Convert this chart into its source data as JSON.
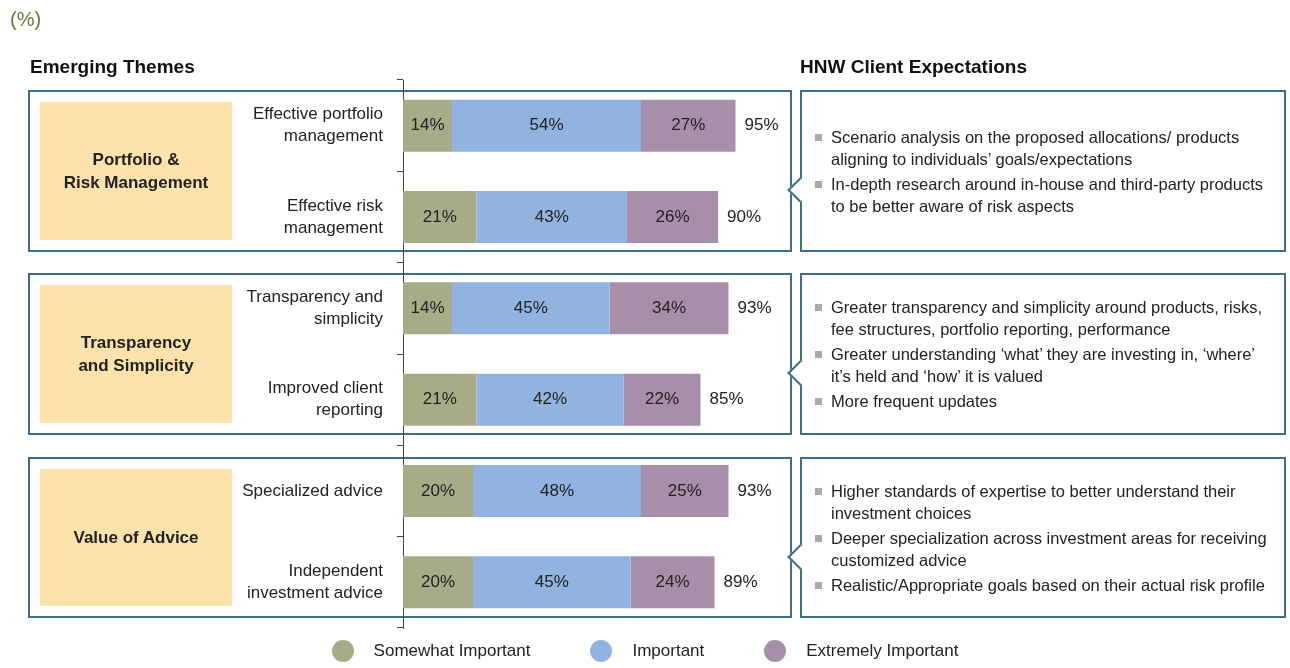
{
  "chart_data": {
    "type": "bar",
    "orientation": "horizontal",
    "stacked": true,
    "title": "(%)",
    "categories": [
      "Effective portfolio management",
      "Effective risk management",
      "Transparency and simplicity",
      "Improved client reporting",
      "Specialized advice",
      "Independent investment advice"
    ],
    "series": [
      {
        "name": "Somewhat Important",
        "color": "#a8ab87",
        "values": [
          14,
          21,
          14,
          21,
          20,
          20
        ],
        "value_labels": [
          "14%",
          "21%",
          "14%",
          "21%",
          "20%",
          "20%"
        ]
      },
      {
        "name": "Important",
        "color": "#90b4df",
        "values": [
          54,
          43,
          45,
          42,
          48,
          45
        ],
        "value_labels": [
          "54%",
          "43%",
          "45%",
          "42%",
          "48%",
          "45%"
        ]
      },
      {
        "name": "Extremely Important",
        "color": "#a88fa9",
        "values": [
          27,
          26,
          34,
          22,
          25,
          24
        ],
        "value_labels": [
          "27%",
          "26%",
          "34%",
          "22%",
          "25%",
          "24%"
        ]
      }
    ],
    "totals": [
      "95%",
      "90%",
      "93%",
      "85%",
      "93%",
      "89%"
    ],
    "legend": "bottom",
    "annotations": [
      "Emerging Themes",
      "HNW Client Expectations",
      "Portfolio & Risk Management",
      "Transparency and Simplicity",
      "Value of Advice",
      "Scenario analysis on the proposed allocations/ products aligning to individuals’ goals/expectations",
      "In-depth research around in-house and third-party products to be better aware of risk aspects",
      "Greater transparency and simplicity around products, risks, fee structures, portfolio reporting, performance",
      "Greater understanding ‘what’ they are investing in, ‘where’ it’s held and ‘how’ it is valued",
      "More frequent updates",
      "Higher standards of expertise to better understand their investment choices",
      "Deeper specialization across investment areas for receiving customized advice",
      "Realistic/Appropriate goals based on their actual risk profile"
    ]
  }
}
